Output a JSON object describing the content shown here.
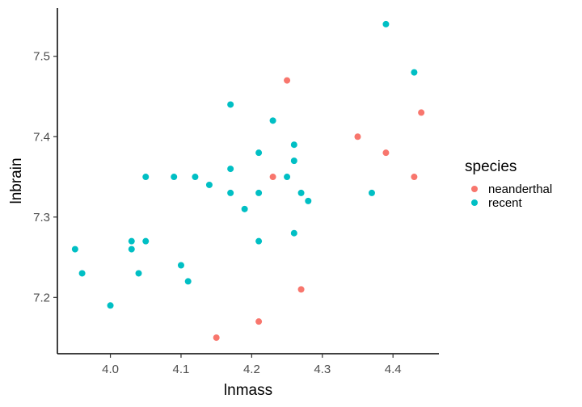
{
  "chart_data": {
    "type": "scatter",
    "xlabel": "lnmass",
    "ylabel": "lnbrain",
    "xlim": [
      3.925,
      4.465
    ],
    "ylim": [
      7.13,
      7.56
    ],
    "x_ticks": [
      "4.0",
      "4.1",
      "4.2",
      "4.3",
      "4.4"
    ],
    "y_ticks": [
      "7.2",
      "7.3",
      "7.4",
      "7.5"
    ],
    "grid": false,
    "legend": {
      "title": "species",
      "position": "right"
    },
    "series": [
      {
        "name": "neanderthal",
        "color": "#F8766D",
        "points": [
          [
            4.15,
            7.15
          ],
          [
            4.21,
            7.17
          ],
          [
            4.23,
            7.35
          ],
          [
            4.25,
            7.47
          ],
          [
            4.27,
            7.21
          ],
          [
            4.35,
            7.4
          ],
          [
            4.39,
            7.38
          ],
          [
            4.43,
            7.35
          ],
          [
            4.44,
            7.43
          ]
        ]
      },
      {
        "name": "recent",
        "color": "#00BFC4",
        "points": [
          [
            3.95,
            7.26
          ],
          [
            3.96,
            7.23
          ],
          [
            4.0,
            7.19
          ],
          [
            4.03,
            7.27
          ],
          [
            4.03,
            7.26
          ],
          [
            4.04,
            7.23
          ],
          [
            4.05,
            7.27
          ],
          [
            4.05,
            7.35
          ],
          [
            4.09,
            7.35
          ],
          [
            4.1,
            7.24
          ],
          [
            4.11,
            7.22
          ],
          [
            4.12,
            7.35
          ],
          [
            4.14,
            7.34
          ],
          [
            4.17,
            7.44
          ],
          [
            4.17,
            7.36
          ],
          [
            4.17,
            7.33
          ],
          [
            4.19,
            7.31
          ],
          [
            4.21,
            7.38
          ],
          [
            4.21,
            7.33
          ],
          [
            4.21,
            7.27
          ],
          [
            4.23,
            7.42
          ],
          [
            4.25,
            7.35
          ],
          [
            4.26,
            7.39
          ],
          [
            4.26,
            7.37
          ],
          [
            4.26,
            7.28
          ],
          [
            4.27,
            7.33
          ],
          [
            4.28,
            7.32
          ],
          [
            4.37,
            7.33
          ],
          [
            4.39,
            7.54
          ],
          [
            4.43,
            7.48
          ]
        ]
      }
    ]
  }
}
